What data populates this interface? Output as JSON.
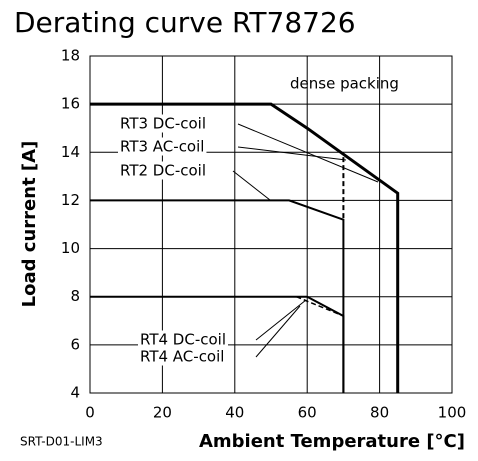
{
  "chart_data": {
    "type": "line",
    "title": "Derating curve RT78726",
    "xlabel": "Ambient Temperature [°C]",
    "ylabel": "Load current [A]",
    "xlim": [
      0,
      100
    ],
    "xticks": [
      0,
      20,
      40,
      60,
      80,
      100
    ],
    "ylim": [
      4,
      18
    ],
    "yticks": [
      4,
      6,
      8,
      10,
      12,
      14,
      16,
      18
    ],
    "grid": true,
    "annotations": [
      "dense packing",
      "SRT-D01-LIM3"
    ],
    "series": [
      {
        "name": "RT3 DC-coil",
        "color": "#000000",
        "style": "solid",
        "x": [
          0,
          50,
          60,
          85,
          85
        ],
        "values": [
          16,
          16,
          15,
          12.3,
          4
        ]
      },
      {
        "name": "RT3 AC-coil",
        "color": "#000000",
        "style": "dashed",
        "x": [
          70,
          70
        ],
        "values": [
          13.8,
          11.2
        ]
      },
      {
        "name": "RT2 DC-coil",
        "color": "#000000",
        "style": "solid",
        "x": [
          0,
          55,
          70,
          70
        ],
        "values": [
          12,
          12,
          11.2,
          4
        ]
      },
      {
        "name": "RT4 DC-coil",
        "color": "#000000",
        "style": "solid",
        "x": [
          0,
          60,
          70,
          70
        ],
        "values": [
          8,
          8,
          7.2,
          4
        ]
      },
      {
        "name": "RT4 AC-coil",
        "color": "#000000",
        "style": "dashed",
        "x": [
          57,
          70
        ],
        "values": [
          8,
          7.2
        ]
      }
    ]
  }
}
